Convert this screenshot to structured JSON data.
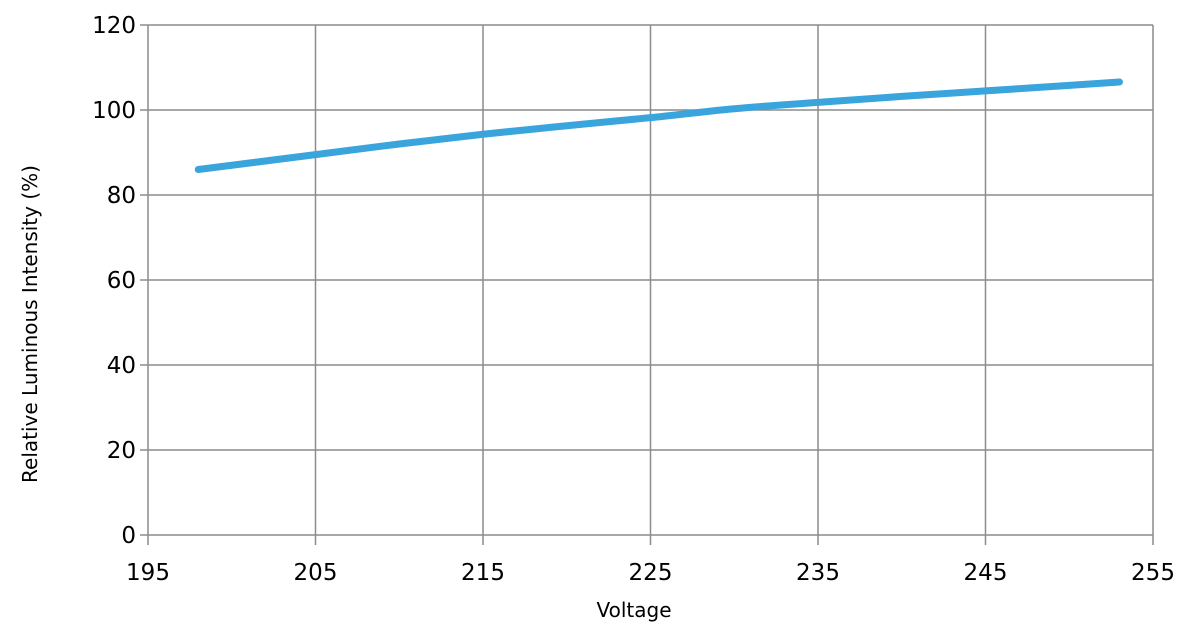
{
  "chart_data": {
    "type": "line",
    "title": "",
    "xlabel": "Voltage",
    "ylabel": "Relative Luminous Intensity (%)",
    "xlim": [
      195,
      255
    ],
    "ylim": [
      0,
      120
    ],
    "x_ticks": [
      195,
      205,
      215,
      225,
      235,
      245,
      255
    ],
    "y_ticks": [
      0,
      20,
      40,
      60,
      80,
      100,
      120
    ],
    "x_tick_labels": [
      "195",
      "205",
      "215",
      "225",
      "235",
      "245",
      "255"
    ],
    "y_tick_labels": [
      "0",
      "20",
      "40",
      "60",
      "80",
      "100",
      "120"
    ],
    "grid": true,
    "legend": "none",
    "series": [
      {
        "color": "#3AA5DC",
        "x": [
          198,
          205,
          210,
          215,
          220,
          225,
          230,
          235,
          240,
          245,
          250,
          253
        ],
        "y": [
          86,
          89.5,
          92,
          94.3,
          96.3,
          98.2,
          100.3,
          101.8,
          103.2,
          104.5,
          105.8,
          106.6
        ]
      }
    ]
  }
}
